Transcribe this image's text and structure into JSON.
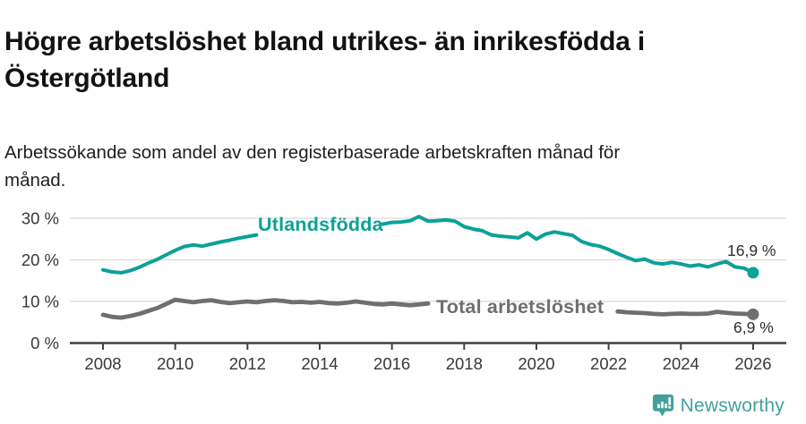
{
  "header": {
    "title_line1": "Högre arbetslöshet bland utrikes- än inrikesfödda i",
    "title_line2": "Östergötland",
    "subtitle_line1": "Arbetssökande som andel av den registerbaserade arbetskraften månad för",
    "subtitle_line2": "månad."
  },
  "footer": {
    "brand": "Newsworthy",
    "brand_color": "#43a09b"
  },
  "chart_data": {
    "type": "line",
    "title": "Högre arbetslöshet bland utrikes- än inrikesfödda i Östergötland",
    "subtitle": "Arbetssökande som andel av den registerbaserade arbetskraften månad för månad.",
    "xlabel": "",
    "ylabel": "",
    "x_range": [
      2008,
      2026
    ],
    "ylim": [
      0,
      32
    ],
    "grid": "horizontal",
    "legend": "inline-labels",
    "grid_color": "#d9d9d9",
    "axis_color": "#3f3f3f",
    "tick_color": "#383838",
    "yticks": [
      {
        "value": 0,
        "label": "0 %"
      },
      {
        "value": 10,
        "label": "10 %"
      },
      {
        "value": 20,
        "label": "20 %"
      },
      {
        "value": 30,
        "label": "30 %"
      }
    ],
    "xticks": [
      {
        "value": 2008,
        "label": "2008"
      },
      {
        "value": 2010,
        "label": "2010"
      },
      {
        "value": 2012,
        "label": "2012"
      },
      {
        "value": 2014,
        "label": "2014"
      },
      {
        "value": 2016,
        "label": "2016"
      },
      {
        "value": 2018,
        "label": "2018"
      },
      {
        "value": 2020,
        "label": "2020"
      },
      {
        "value": 2022,
        "label": "2022"
      },
      {
        "value": 2024,
        "label": "2024"
      },
      {
        "value": 2026,
        "label": "2026"
      }
    ],
    "series": [
      {
        "name": "Utlandsfödda",
        "color": "#0ba198",
        "end_label": "16,9 %",
        "end_value": 16.9,
        "label_gap_x": [
          2012.3,
          2015.7
        ],
        "points": [
          [
            2008,
            17.6
          ],
          [
            2008.25,
            17.1
          ],
          [
            2008.5,
            16.9
          ],
          [
            2008.75,
            17.4
          ],
          [
            2009,
            18.2
          ],
          [
            2009.25,
            19.2
          ],
          [
            2009.5,
            20.1
          ],
          [
            2009.75,
            21.2
          ],
          [
            2010,
            22.3
          ],
          [
            2010.25,
            23.2
          ],
          [
            2010.5,
            23.6
          ],
          [
            2010.75,
            23.3
          ],
          [
            2011,
            23.8
          ],
          [
            2011.25,
            24.3
          ],
          [
            2011.5,
            24.7
          ],
          [
            2011.75,
            25.2
          ],
          [
            2012,
            25.6
          ],
          [
            2012.25,
            26.0
          ],
          [
            2012.5,
            26.2
          ],
          [
            2012.75,
            26.1
          ],
          [
            2013,
            26.3
          ],
          [
            2013.25,
            26.5
          ],
          [
            2013.5,
            26.7
          ],
          [
            2013.75,
            26.8
          ],
          [
            2014,
            27.0
          ],
          [
            2014.25,
            27.1
          ],
          [
            2014.5,
            27.3
          ],
          [
            2014.75,
            27.5
          ],
          [
            2015,
            27.7
          ],
          [
            2015.25,
            28.0
          ],
          [
            2015.5,
            28.3
          ],
          [
            2015.75,
            28.6
          ],
          [
            2016,
            29.0
          ],
          [
            2016.25,
            29.1
          ],
          [
            2016.5,
            29.4
          ],
          [
            2016.75,
            30.4
          ],
          [
            2017,
            29.3
          ],
          [
            2017.25,
            29.4
          ],
          [
            2017.5,
            29.6
          ],
          [
            2017.75,
            29.3
          ],
          [
            2018,
            28.0
          ],
          [
            2018.25,
            27.4
          ],
          [
            2018.5,
            27.0
          ],
          [
            2018.75,
            26.0
          ],
          [
            2019,
            25.7
          ],
          [
            2019.25,
            25.5
          ],
          [
            2019.5,
            25.3
          ],
          [
            2019.75,
            26.5
          ],
          [
            2020,
            25.0
          ],
          [
            2020.25,
            26.2
          ],
          [
            2020.5,
            26.7
          ],
          [
            2020.75,
            26.3
          ],
          [
            2021,
            25.9
          ],
          [
            2021.25,
            24.4
          ],
          [
            2021.5,
            23.7
          ],
          [
            2021.75,
            23.3
          ],
          [
            2022,
            22.5
          ],
          [
            2022.25,
            21.5
          ],
          [
            2022.5,
            20.6
          ],
          [
            2022.75,
            19.8
          ],
          [
            2023,
            20.2
          ],
          [
            2023.25,
            19.3
          ],
          [
            2023.5,
            19.0
          ],
          [
            2023.75,
            19.4
          ],
          [
            2024,
            19.0
          ],
          [
            2024.25,
            18.5
          ],
          [
            2024.5,
            18.8
          ],
          [
            2024.75,
            18.3
          ],
          [
            2025,
            19.0
          ],
          [
            2025.25,
            19.6
          ],
          [
            2025.5,
            18.3
          ],
          [
            2025.75,
            18.0
          ],
          [
            2026,
            16.9
          ]
        ]
      },
      {
        "name": "Total arbetslöshet",
        "color": "#6e6e73",
        "end_label": "6,9 %",
        "end_value": 6.9,
        "label_gap_x": [
          2017.05,
          2022.2
        ],
        "points": [
          [
            2008,
            6.8
          ],
          [
            2008.25,
            6.3
          ],
          [
            2008.5,
            6.1
          ],
          [
            2008.75,
            6.5
          ],
          [
            2009,
            7.0
          ],
          [
            2009.25,
            7.7
          ],
          [
            2009.5,
            8.4
          ],
          [
            2009.75,
            9.4
          ],
          [
            2010,
            10.4
          ],
          [
            2010.25,
            10.1
          ],
          [
            2010.5,
            9.8
          ],
          [
            2010.75,
            10.1
          ],
          [
            2011,
            10.3
          ],
          [
            2011.25,
            9.9
          ],
          [
            2011.5,
            9.6
          ],
          [
            2011.75,
            9.8
          ],
          [
            2012,
            10.0
          ],
          [
            2012.25,
            9.8
          ],
          [
            2012.5,
            10.1
          ],
          [
            2012.75,
            10.3
          ],
          [
            2013,
            10.1
          ],
          [
            2013.25,
            9.8
          ],
          [
            2013.5,
            9.9
          ],
          [
            2013.75,
            9.7
          ],
          [
            2014,
            9.9
          ],
          [
            2014.25,
            9.6
          ],
          [
            2014.5,
            9.5
          ],
          [
            2014.75,
            9.7
          ],
          [
            2015,
            10.0
          ],
          [
            2015.25,
            9.7
          ],
          [
            2015.5,
            9.4
          ],
          [
            2015.75,
            9.3
          ],
          [
            2016,
            9.5
          ],
          [
            2016.25,
            9.3
          ],
          [
            2016.5,
            9.1
          ],
          [
            2016.75,
            9.3
          ],
          [
            2017,
            9.5
          ],
          [
            2017.25,
            9.4
          ],
          [
            2017.5,
            9.2
          ],
          [
            2017.75,
            9.0
          ],
          [
            2018,
            8.8
          ],
          [
            2018.25,
            8.6
          ],
          [
            2018.5,
            8.5
          ],
          [
            2018.75,
            8.4
          ],
          [
            2019,
            8.3
          ],
          [
            2019.25,
            8.2
          ],
          [
            2019.5,
            8.1
          ],
          [
            2019.75,
            8.2
          ],
          [
            2020,
            8.3
          ],
          [
            2020.25,
            8.8
          ],
          [
            2020.5,
            8.9
          ],
          [
            2020.75,
            8.7
          ],
          [
            2021,
            8.4
          ],
          [
            2021.25,
            8.1
          ],
          [
            2021.5,
            7.9
          ],
          [
            2021.75,
            7.7
          ],
          [
            2022,
            7.6
          ],
          [
            2022.25,
            7.6
          ],
          [
            2022.5,
            7.4
          ],
          [
            2022.75,
            7.3
          ],
          [
            2023,
            7.2
          ],
          [
            2023.25,
            7.0
          ],
          [
            2023.5,
            6.9
          ],
          [
            2023.75,
            7.0
          ],
          [
            2024,
            7.1
          ],
          [
            2024.25,
            7.0
          ],
          [
            2024.5,
            7.0
          ],
          [
            2024.75,
            7.1
          ],
          [
            2025,
            7.5
          ],
          [
            2025.25,
            7.3
          ],
          [
            2025.5,
            7.1
          ],
          [
            2025.75,
            7.0
          ],
          [
            2026,
            6.9
          ]
        ]
      }
    ]
  }
}
